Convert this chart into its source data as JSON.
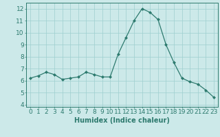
{
  "x": [
    0,
    1,
    2,
    3,
    4,
    5,
    6,
    7,
    8,
    9,
    10,
    11,
    12,
    13,
    14,
    15,
    16,
    17,
    18,
    19,
    20,
    21,
    22,
    23
  ],
  "y": [
    6.2,
    6.4,
    6.7,
    6.5,
    6.1,
    6.2,
    6.3,
    6.7,
    6.5,
    6.3,
    6.3,
    8.2,
    9.6,
    11.0,
    12.0,
    11.7,
    11.1,
    9.0,
    7.5,
    6.2,
    5.9,
    5.7,
    5.2,
    4.6
  ],
  "line_color": "#2d7a6e",
  "marker": "D",
  "marker_size": 2.0,
  "bg_color": "#cce9e9",
  "grid_color": "#9dcfcf",
  "xlabel": "Humidex (Indice chaleur)",
  "xlim": [
    -0.5,
    23.5
  ],
  "ylim": [
    3.8,
    12.5
  ],
  "yticks": [
    4,
    5,
    6,
    7,
    8,
    9,
    10,
    11,
    12
  ],
  "xticks": [
    0,
    1,
    2,
    3,
    4,
    5,
    6,
    7,
    8,
    9,
    10,
    11,
    12,
    13,
    14,
    15,
    16,
    17,
    18,
    19,
    20,
    21,
    22,
    23
  ],
  "tick_color": "#2d7a6e",
  "label_color": "#2d7a6e",
  "spine_color": "#2d7a6e",
  "xlabel_fontsize": 7,
  "tick_fontsize": 6.5
}
